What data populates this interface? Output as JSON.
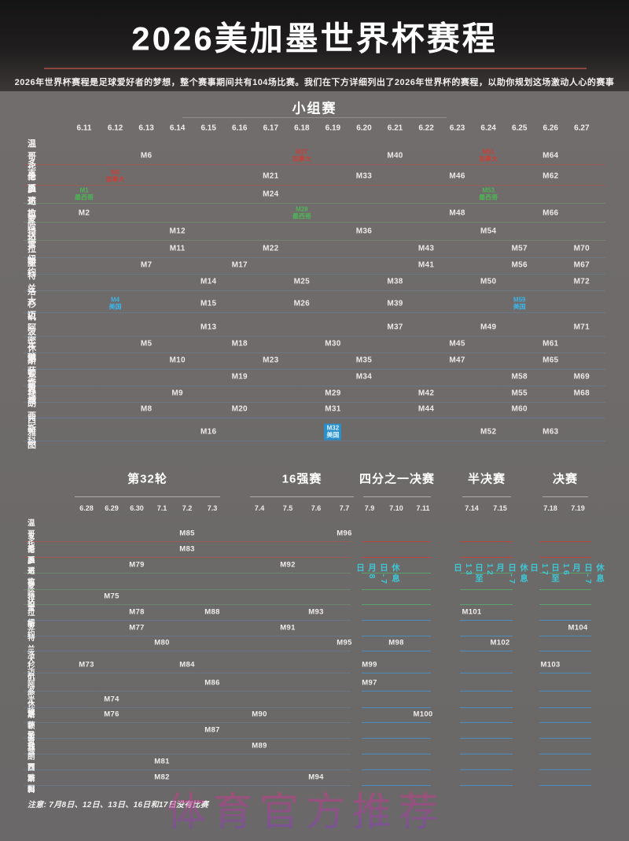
{
  "title": "2026美加墨世界杯赛程",
  "subtitle": "2026年世界杯赛程是足球爱好者的梦想，整个赛事期间共有104场比赛。我们在下方详细列出了2026年世界杯的赛程，以助你规划这场激动人心的赛事",
  "note": "注意: 7月8日、12日、13日、16日和17日没有比赛",
  "watermark": "体育官方推荐",
  "colors": {
    "canada": "#c84038",
    "mexico": "#4fb357",
    "usa": "#3cb4e6",
    "usa_badge_bg": "#2a8fc9",
    "usa_badge_text": "#d9f1ff",
    "rest_day": "#3ec6d4",
    "title_underline": "#8c463c",
    "line_canada_soft": "rgba(200,75,65,0.5)",
    "line_mexico_soft": "rgba(110,170,115,0.42)",
    "line_usa_soft": "rgba(100,140,180,0.38)",
    "line_canada_bright": "rgba(205,62,52,0.85)",
    "line_mexico_bright": "rgba(85,178,108,0.8)",
    "line_usa_bright": "rgba(70,150,210,0.8)"
  },
  "group_stage": {
    "heading": "小组赛",
    "dates": [
      "6.11",
      "6.12",
      "6.13",
      "6.14",
      "6.15",
      "6.16",
      "6.17",
      "6.18",
      "6.19",
      "6.20",
      "6.21",
      "6.22",
      "6.23",
      "6.24",
      "6.25",
      "6.26",
      "6.27"
    ],
    "rows": [
      {
        "city": "温哥华",
        "country": "canada",
        "matches": [
          {
            "date": "6.13",
            "m": "M6"
          },
          {
            "date": "6.18",
            "m": "M27",
            "host": "加拿大"
          },
          {
            "date": "6.21",
            "m": "M40"
          },
          {
            "date": "6.24",
            "m": "M51",
            "host": "加拿大"
          },
          {
            "date": "6.26",
            "m": "M64"
          }
        ]
      },
      {
        "city": "多伦多",
        "country": "canada",
        "matches": [
          {
            "date": "6.12",
            "m": "M3",
            "host": "加拿大"
          },
          {
            "date": "6.17",
            "m": "M21"
          },
          {
            "date": "6.20",
            "m": "M33"
          },
          {
            "date": "6.23",
            "m": "M46"
          },
          {
            "date": "6.26",
            "m": "M62"
          }
        ]
      },
      {
        "city": "墨西哥市",
        "country": "mexico",
        "matches": [
          {
            "date": "6.11",
            "m": "M1",
            "host": "墨西哥"
          },
          {
            "date": "6.17",
            "m": "M24"
          },
          {
            "date": "6.24",
            "m": "M53",
            "host": "墨西哥"
          }
        ]
      },
      {
        "city": "瓜达拉哈拉",
        "country": "mexico",
        "matches": [
          {
            "date": "6.11",
            "m": "M2"
          },
          {
            "date": "6.18",
            "m": "M28",
            "host": "墨西哥"
          },
          {
            "date": "6.23",
            "m": "M48"
          },
          {
            "date": "6.26",
            "m": "M66"
          }
        ]
      },
      {
        "city": "蒙特雷",
        "country": "mexico",
        "matches": [
          {
            "date": "6.14",
            "m": "M12"
          },
          {
            "date": "6.20",
            "m": "M36"
          },
          {
            "date": "6.24",
            "m": "M54"
          }
        ]
      },
      {
        "city": "达拉斯",
        "country": "usa",
        "matches": [
          {
            "date": "6.14",
            "m": "M11"
          },
          {
            "date": "6.17",
            "m": "M22"
          },
          {
            "date": "6.22",
            "m": "M43"
          },
          {
            "date": "6.25",
            "m": "M57"
          },
          {
            "date": "6.27",
            "m": "M70"
          }
        ]
      },
      {
        "city": "纽约",
        "country": "usa",
        "matches": [
          {
            "date": "6.13",
            "m": "M7"
          },
          {
            "date": "6.16",
            "m": "M17"
          },
          {
            "date": "6.22",
            "m": "M41"
          },
          {
            "date": "6.25",
            "m": "M56"
          },
          {
            "date": "6.27",
            "m": "M67"
          }
        ]
      },
      {
        "city": "亚特兰大",
        "country": "usa",
        "matches": [
          {
            "date": "6.15",
            "m": "M14"
          },
          {
            "date": "6.18",
            "m": "M25"
          },
          {
            "date": "6.21",
            "m": "M38"
          },
          {
            "date": "6.24",
            "m": "M50"
          },
          {
            "date": "6.27",
            "m": "M72"
          }
        ]
      },
      {
        "city": "洛杉矶",
        "country": "usa",
        "matches": [
          {
            "date": "6.12",
            "m": "M4",
            "host": "美国"
          },
          {
            "date": "6.15",
            "m": "M15"
          },
          {
            "date": "6.18",
            "m": "M26"
          },
          {
            "date": "6.21",
            "m": "M39"
          },
          {
            "date": "6.25",
            "m": "M59",
            "host": "美国"
          }
        ]
      },
      {
        "city": "迈阿密",
        "country": "usa",
        "matches": [
          {
            "date": "6.15",
            "m": "M13"
          },
          {
            "date": "6.21",
            "m": "M37"
          },
          {
            "date": "6.24",
            "m": "M49"
          },
          {
            "date": "6.27",
            "m": "M71"
          }
        ]
      },
      {
        "city": "波士顿",
        "country": "usa",
        "matches": [
          {
            "date": "6.13",
            "m": "M5"
          },
          {
            "date": "6.16",
            "m": "M18"
          },
          {
            "date": "6.19",
            "m": "M30"
          },
          {
            "date": "6.23",
            "m": "M45"
          },
          {
            "date": "6.26",
            "m": "M61"
          }
        ]
      },
      {
        "city": "休斯顿",
        "country": "usa",
        "matches": [
          {
            "date": "6.14",
            "m": "M10"
          },
          {
            "date": "6.17",
            "m": "M23"
          },
          {
            "date": "6.20",
            "m": "M35"
          },
          {
            "date": "6.23",
            "m": "M47"
          },
          {
            "date": "6.26",
            "m": "M65"
          }
        ]
      },
      {
        "city": "堪萨斯城",
        "country": "usa",
        "matches": [
          {
            "date": "6.16",
            "m": "M19"
          },
          {
            "date": "6.20",
            "m": "M34"
          },
          {
            "date": "6.25",
            "m": "M58"
          },
          {
            "date": "6.27",
            "m": "M69"
          }
        ]
      },
      {
        "city": "费城",
        "country": "usa",
        "matches": [
          {
            "date": "6.14",
            "m": "M9"
          },
          {
            "date": "6.19",
            "m": "M29"
          },
          {
            "date": "6.22",
            "m": "M42"
          },
          {
            "date": "6.25",
            "m": "M55"
          },
          {
            "date": "6.27",
            "m": "M68"
          }
        ]
      },
      {
        "city": "圣弗朗西斯科",
        "country": "usa",
        "matches": [
          {
            "date": "6.13",
            "m": "M8"
          },
          {
            "date": "6.16",
            "m": "M20"
          },
          {
            "date": "6.19",
            "m": "M31"
          },
          {
            "date": "6.22",
            "m": "M44"
          },
          {
            "date": "6.25",
            "m": "M60"
          }
        ]
      },
      {
        "city": "西雅图",
        "country": "usa",
        "matches": [
          {
            "date": "6.15",
            "m": "M16"
          },
          {
            "date": "6.19",
            "m": "M32",
            "host": "美国",
            "badge": true
          },
          {
            "date": "6.24",
            "m": "M52"
          },
          {
            "date": "6.26",
            "m": "M63"
          }
        ]
      }
    ]
  },
  "knockout": {
    "stages": [
      {
        "name": "第32轮",
        "dates": [
          "6.28",
          "6.29",
          "6.30",
          "7.1",
          "7.2",
          "7.3"
        ]
      },
      {
        "name": "16强赛",
        "dates": [
          "7.4",
          "7.5",
          "7.6",
          "7.7"
        ]
      },
      {
        "name": "四分之一决赛",
        "dates": [
          "7.9",
          "7.10",
          "7.11"
        ]
      },
      {
        "name": "半决赛",
        "dates": [
          "7.14",
          "7.15"
        ]
      },
      {
        "name": "决赛",
        "dates": [
          "7.18",
          "7.19"
        ]
      }
    ],
    "rest_days": [
      "休息日-7月8日",
      "休息日-7月12日至13日",
      "休息日-7月16日至17日"
    ],
    "rows": [
      {
        "city": "温哥华",
        "country": "canada",
        "matches": [
          {
            "date": "7.2",
            "m": "M85"
          },
          {
            "date": "7.7",
            "m": "M96"
          }
        ]
      },
      {
        "city": "多伦多",
        "country": "canada",
        "matches": [
          {
            "date": "7.2",
            "m": "M83"
          }
        ]
      },
      {
        "city": "墨西哥市",
        "country": "mexico",
        "matches": [
          {
            "date": "6.30",
            "m": "M79"
          },
          {
            "date": "7.5",
            "m": "M92"
          }
        ]
      },
      {
        "city": "瓜达拉哈拉",
        "country": "mexico",
        "matches": []
      },
      {
        "city": "蒙特雷",
        "country": "mexico",
        "matches": [
          {
            "date": "6.29",
            "m": "M75"
          }
        ]
      },
      {
        "city": "达拉斯",
        "country": "usa",
        "matches": [
          {
            "date": "6.30",
            "m": "M78"
          },
          {
            "date": "7.3",
            "m": "M88"
          },
          {
            "date": "7.6",
            "m": "M93"
          },
          {
            "date": "7.14",
            "m": "M101"
          }
        ]
      },
      {
        "city": "纽约",
        "country": "usa",
        "matches": [
          {
            "date": "6.30",
            "m": "M77"
          },
          {
            "date": "7.5",
            "m": "M91"
          },
          {
            "date": "7.19",
            "m": "M104"
          }
        ]
      },
      {
        "city": "亚特兰大",
        "country": "usa",
        "matches": [
          {
            "date": "7.1",
            "m": "M80"
          },
          {
            "date": "7.7",
            "m": "M95"
          },
          {
            "date": "7.10",
            "m": "M98"
          },
          {
            "date": "7.15",
            "m": "M102"
          }
        ]
      },
      {
        "city": "洛杉矶",
        "country": "usa",
        "matches": [
          {
            "date": "6.28",
            "m": "M73"
          },
          {
            "date": "7.2",
            "m": "M84"
          },
          {
            "date": "7.9",
            "m": "M99"
          },
          {
            "date": "7.18",
            "m": "M103"
          }
        ]
      },
      {
        "city": "迈阿密",
        "country": "usa",
        "matches": [
          {
            "date": "7.3",
            "m": "M86"
          },
          {
            "date": "7.9",
            "m": "M97"
          }
        ]
      },
      {
        "city": "波士顿",
        "country": "usa",
        "matches": [
          {
            "date": "6.29",
            "m": "M74"
          }
        ]
      },
      {
        "city": "休斯顿",
        "country": "usa",
        "matches": [
          {
            "date": "6.29",
            "m": "M76"
          },
          {
            "date": "7.4",
            "m": "M90"
          },
          {
            "date": "7.11",
            "m": "M100"
          }
        ]
      },
      {
        "city": "堪萨斯城",
        "country": "usa",
        "matches": [
          {
            "date": "7.3",
            "m": "M87"
          }
        ]
      },
      {
        "city": "费城",
        "country": "usa",
        "matches": [
          {
            "date": "7.4",
            "m": "M89"
          }
        ]
      },
      {
        "city": "圣弗朗西斯科",
        "country": "usa",
        "matches": [
          {
            "date": "7.1",
            "m": "M81"
          }
        ]
      },
      {
        "city": "西雅图",
        "country": "usa",
        "matches": [
          {
            "date": "7.1",
            "m": "M82"
          },
          {
            "date": "7.6",
            "m": "M94"
          }
        ]
      }
    ]
  }
}
